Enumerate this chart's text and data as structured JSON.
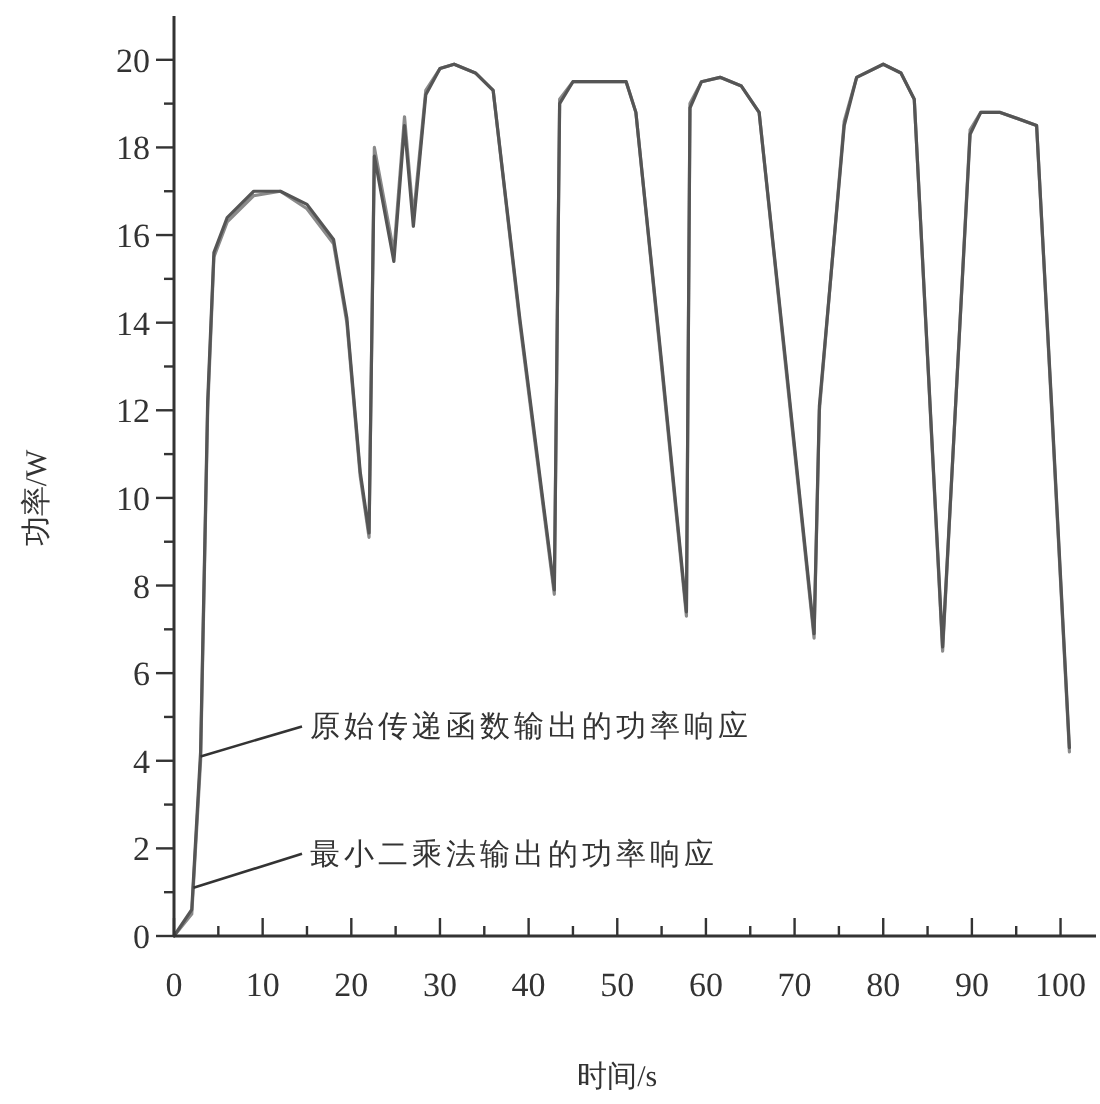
{
  "chart_data": {
    "type": "line",
    "xlabel": "时间/s",
    "ylabel": "功率/W",
    "x": [
      0,
      2,
      3,
      3.8,
      4.5,
      6,
      9,
      12,
      15,
      18,
      19.5,
      21,
      22,
      22.6,
      24.8,
      26,
      27,
      28.4,
      30,
      31.6,
      34,
      36,
      39,
      42.9,
      43.5,
      45,
      51,
      52.1,
      55,
      57.8,
      58.2,
      59.5,
      61.6,
      64,
      66,
      69,
      72.2,
      72.8,
      75.6,
      77,
      80,
      82,
      83.5,
      86.7,
      89.8,
      91,
      93.2,
      97.3,
      99,
      101
    ],
    "series": [
      {
        "color": "#8a8a8a",
        "values": [
          0,
          0.5,
          4,
          12,
          15.5,
          16.3,
          16.9,
          17,
          16.6,
          15.8,
          14,
          10.5,
          9.1,
          18,
          15.6,
          18.7,
          16.4,
          19.3,
          19.8,
          19.9,
          19.7,
          19.3,
          14,
          7.8,
          19.1,
          19.5,
          19.5,
          18.8,
          13,
          7.3,
          19,
          19.5,
          19.6,
          19.4,
          18.8,
          13,
          6.8,
          12,
          18.6,
          19.6,
          19.9,
          19.7,
          19.1,
          6.5,
          18.4,
          18.8,
          18.8,
          18.5,
          12,
          4.2
        ]
      },
      {
        "color": "#555555",
        "values": [
          0,
          0.6,
          4.2,
          12.2,
          15.6,
          16.4,
          17,
          17,
          16.7,
          15.9,
          14.1,
          10.6,
          9.2,
          17.8,
          15.4,
          18.5,
          16.2,
          19.2,
          19.8,
          19.9,
          19.7,
          19.3,
          14.1,
          7.9,
          19,
          19.5,
          19.5,
          18.8,
          13.1,
          7.4,
          18.9,
          19.5,
          19.6,
          19.4,
          18.8,
          13.1,
          6.9,
          12.1,
          18.5,
          19.6,
          19.9,
          19.7,
          19.1,
          6.6,
          18.3,
          18.8,
          18.8,
          18.5,
          12.1,
          4.3
        ]
      }
    ],
    "xlim": [
      0,
      104
    ],
    "ylim": [
      0,
      21
    ],
    "xticks": [
      0,
      {
        "value": 5,
        "label": null
      },
      10,
      {
        "value": 15,
        "label": null
      },
      20,
      {
        "value": 25,
        "label": null
      },
      30,
      {
        "value": 35,
        "label": null
      },
      40,
      {
        "value": 45,
        "label": null
      },
      50,
      {
        "value": 55,
        "label": null
      },
      60,
      {
        "value": 65,
        "label": null
      },
      70,
      {
        "value": 75,
        "label": null
      },
      80,
      {
        "value": 85,
        "label": null
      },
      90,
      {
        "value": 95,
        "label": null
      },
      100
    ],
    "yticks": [
      0,
      {
        "value": 1,
        "label": null
      },
      2,
      {
        "value": 3,
        "label": null
      },
      4,
      {
        "value": 5,
        "label": null
      },
      6,
      {
        "value": 7,
        "label": null
      },
      8,
      {
        "value": 9,
        "label": null
      },
      10,
      {
        "value": 11,
        "label": null
      },
      12,
      {
        "value": 13,
        "label": null
      },
      14,
      {
        "value": 15,
        "label": null
      },
      16,
      {
        "value": 17,
        "label": null
      },
      18,
      {
        "value": 19,
        "label": null
      },
      20
    ],
    "annotations": [
      {
        "text": "原始传递函数输出的功率响应",
        "x": 3,
        "y": 4.1
      },
      {
        "text": "最小二乘法输出的功率响应",
        "x": 2.2,
        "y": 1.1
      }
    ]
  }
}
